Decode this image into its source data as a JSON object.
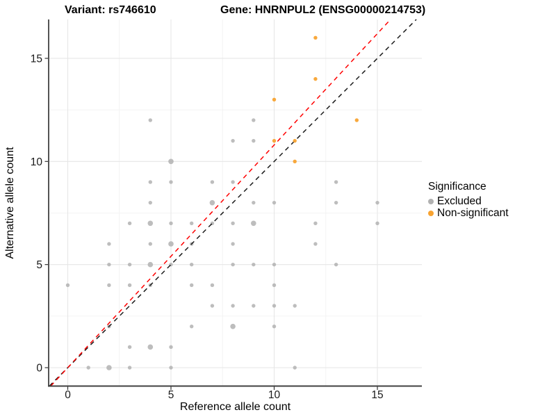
{
  "header": {
    "title_left": "Variant: rs746610",
    "title_right": "Gene: HNRNPUL2 (ENSG00000214753)"
  },
  "legend": {
    "title": "Significance",
    "items": [
      {
        "label": "Excluded",
        "color": "#B1B1B1"
      },
      {
        "label": "Non-significant",
        "color": "#F8A331"
      }
    ]
  },
  "chart_data": {
    "type": "scatter",
    "xlabel": "Reference allele count",
    "ylabel": "Alternative allele count",
    "xticks": [
      0,
      5,
      10,
      15
    ],
    "yticks": [
      0,
      5,
      10,
      15
    ],
    "xminor": [
      2.5,
      7.5,
      12.5
    ],
    "yminor": [
      2.5,
      7.5,
      12.5
    ],
    "xlim": [
      -0.93,
      17.25
    ],
    "ylim": [
      -0.89,
      16.89
    ],
    "grid": "major and minor, light gray on white panel",
    "legend_position": "right-middle",
    "colors": {
      "excluded": "#B1B1B1",
      "non_significant": "#F8A331",
      "identity_line": "#1A1A1A",
      "fit_line": "#FF0000",
      "axis_line": "#404040",
      "grid_major": "#E6E6E6",
      "grid_minor": "#F2F2F2",
      "tick_label": "#1A1A1A"
    },
    "series": [
      {
        "name": "Excluded",
        "color": "#B1B1B1",
        "points": [
          [
            1,
            0,
            1
          ],
          [
            2,
            0,
            2
          ],
          [
            3,
            0,
            1
          ],
          [
            5,
            0,
            1
          ],
          [
            11,
            0,
            1
          ],
          [
            3,
            1,
            1
          ],
          [
            4,
            1,
            2
          ],
          [
            5,
            1,
            1
          ],
          [
            2,
            2,
            1
          ],
          [
            6,
            2,
            1
          ],
          [
            8,
            2,
            2
          ],
          [
            10,
            2,
            1
          ],
          [
            7,
            3,
            1
          ],
          [
            8,
            3,
            1
          ],
          [
            9,
            3,
            1
          ],
          [
            10,
            3,
            1
          ],
          [
            11,
            3,
            1
          ],
          [
            0,
            4,
            1
          ],
          [
            2,
            4,
            1
          ],
          [
            3,
            4,
            1
          ],
          [
            4,
            4,
            1
          ],
          [
            6,
            4,
            1
          ],
          [
            7,
            4,
            1
          ],
          [
            10,
            4,
            1
          ],
          [
            2,
            5,
            1
          ],
          [
            3,
            5,
            1
          ],
          [
            4,
            5,
            2
          ],
          [
            5,
            5,
            1
          ],
          [
            6,
            5,
            1
          ],
          [
            8,
            5,
            1
          ],
          [
            9,
            5,
            1
          ],
          [
            10,
            5,
            1
          ],
          [
            13,
            5,
            1
          ],
          [
            2,
            6,
            1
          ],
          [
            4,
            6,
            1
          ],
          [
            5,
            6,
            2
          ],
          [
            6,
            6,
            1
          ],
          [
            8,
            6,
            1
          ],
          [
            12,
            6,
            1
          ],
          [
            3,
            7,
            1
          ],
          [
            4,
            7,
            2
          ],
          [
            5,
            7,
            1
          ],
          [
            6,
            7,
            1
          ],
          [
            7,
            7,
            1
          ],
          [
            8,
            7,
            1
          ],
          [
            9,
            7,
            2
          ],
          [
            12,
            7,
            1
          ],
          [
            15,
            7,
            1
          ],
          [
            4,
            8,
            1
          ],
          [
            7,
            8,
            2
          ],
          [
            9,
            8,
            1
          ],
          [
            10,
            8,
            1
          ],
          [
            13,
            8,
            1
          ],
          [
            15,
            8,
            1
          ],
          [
            4,
            9,
            1
          ],
          [
            5,
            9,
            1
          ],
          [
            7,
            9,
            1
          ],
          [
            8,
            9,
            1
          ],
          [
            13,
            9,
            1
          ],
          [
            5,
            10,
            2
          ],
          [
            8,
            11,
            1
          ],
          [
            9,
            11,
            1
          ],
          [
            4,
            12,
            1
          ],
          [
            9,
            12,
            1
          ]
        ]
      },
      {
        "name": "Non-significant",
        "color": "#F8A331",
        "points": [
          [
            10,
            11,
            1
          ],
          [
            10,
            13,
            1
          ],
          [
            11,
            10,
            1
          ],
          [
            11,
            11,
            1
          ],
          [
            12,
            14,
            1
          ],
          [
            12,
            16,
            1
          ],
          [
            14,
            12,
            1
          ]
        ]
      }
    ],
    "ref_lines": [
      {
        "name": "identity_line",
        "slope": 1.0,
        "intercept": 0,
        "color": "#1A1A1A",
        "style": "dashed"
      },
      {
        "name": "fit_line",
        "slope": 1.08,
        "intercept": 0,
        "color": "#FF0000",
        "style": "dashed"
      }
    ]
  }
}
